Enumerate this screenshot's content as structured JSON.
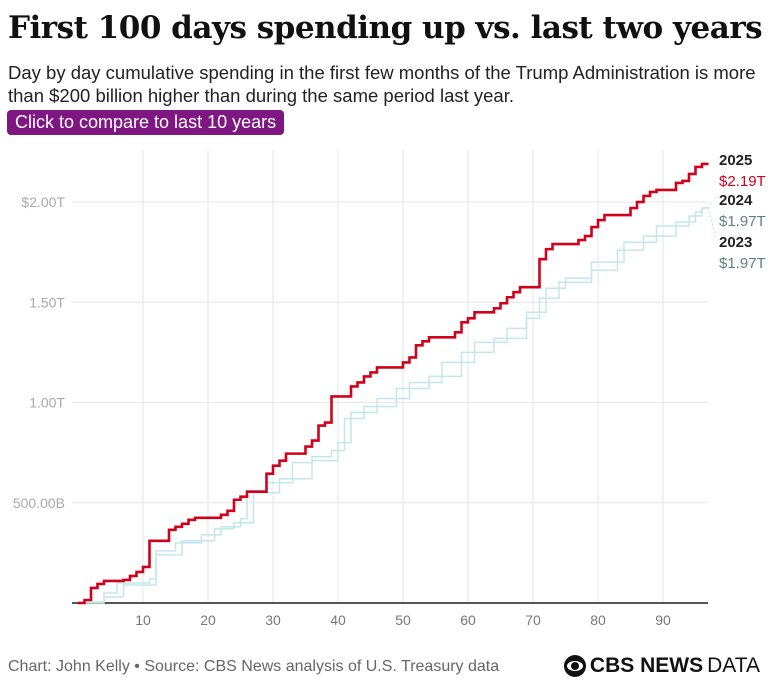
{
  "title": "First 100 days spending up vs. last two years",
  "subtitle": "Day by day cumulative spending in the first few months of the Trump Administration is more than $200 billion higher than during the same period last year.",
  "button_label": "Click to compare to last 10 years",
  "footer": "Chart: John Kelly • Source: CBS News analysis of U.S. Treasury data",
  "logo": {
    "bold": "CBS NEWS",
    "light": "DATA"
  },
  "chart_data": {
    "type": "line",
    "step": true,
    "xlim": [
      0,
      98
    ],
    "ylim": [
      0,
      2.2
    ],
    "x_ticks": [
      10,
      20,
      30,
      40,
      50,
      60,
      70,
      80,
      90
    ],
    "y_ticks": [
      {
        "v": 0.5,
        "label": "500.00B"
      },
      {
        "v": 1.0,
        "label": "1.00T"
      },
      {
        "v": 1.5,
        "label": "1.50T"
      },
      {
        "v": 2.0,
        "label": "$2.00T"
      }
    ],
    "grid": true,
    "series": [
      {
        "name": "2023",
        "end_label": "$1.97T",
        "color": "#c3e6ec",
        "points": [
          [
            1,
            0
          ],
          [
            5,
            0.03
          ],
          [
            8,
            0.09
          ],
          [
            13,
            0.24
          ],
          [
            17,
            0.31
          ],
          [
            22,
            0.37
          ],
          [
            25,
            0.4
          ],
          [
            28,
            0.55
          ],
          [
            32,
            0.62
          ],
          [
            37,
            0.71
          ],
          [
            41,
            0.8
          ],
          [
            43,
            0.95
          ],
          [
            47,
            1.02
          ],
          [
            52,
            1.1
          ],
          [
            57,
            1.2
          ],
          [
            62,
            1.3
          ],
          [
            67,
            1.37
          ],
          [
            70,
            1.45
          ],
          [
            73,
            1.57
          ],
          [
            76,
            1.62
          ],
          [
            80,
            1.66
          ],
          [
            84,
            1.76
          ],
          [
            88,
            1.83
          ],
          [
            93,
            1.9
          ],
          [
            96,
            1.95
          ],
          [
            97,
            1.97
          ]
        ]
      },
      {
        "name": "2024",
        "end_label": "$1.97T",
        "color": "#c3e6ec",
        "points": [
          [
            1,
            0.005
          ],
          [
            5,
            0.05
          ],
          [
            7,
            0.1
          ],
          [
            12,
            0.12
          ],
          [
            13,
            0.26
          ],
          [
            16,
            0.3
          ],
          [
            20,
            0.34
          ],
          [
            23,
            0.38
          ],
          [
            26,
            0.42
          ],
          [
            27,
            0.56
          ],
          [
            30,
            0.6
          ],
          [
            34,
            0.7
          ],
          [
            37,
            0.73
          ],
          [
            40,
            0.76
          ],
          [
            42,
            0.92
          ],
          [
            45,
            0.98
          ],
          [
            50,
            1.07
          ],
          [
            55,
            1.13
          ],
          [
            60,
            1.25
          ],
          [
            65,
            1.32
          ],
          [
            70,
            1.42
          ],
          [
            72,
            1.52
          ],
          [
            75,
            1.6
          ],
          [
            80,
            1.7
          ],
          [
            85,
            1.8
          ],
          [
            90,
            1.88
          ],
          [
            95,
            1.93
          ],
          [
            97,
            1.97
          ]
        ]
      },
      {
        "name": "2025",
        "end_label": "$2.19T",
        "color": "#d0021b",
        "points": [
          [
            1,
            0
          ],
          [
            2,
            0.015
          ],
          [
            3,
            0.075
          ],
          [
            4,
            0.095
          ],
          [
            5,
            0.11
          ],
          [
            8,
            0.115
          ],
          [
            9,
            0.135
          ],
          [
            10,
            0.155
          ],
          [
            11,
            0.18
          ],
          [
            12,
            0.31
          ],
          [
            15,
            0.365
          ],
          [
            16,
            0.38
          ],
          [
            17,
            0.395
          ],
          [
            18,
            0.415
          ],
          [
            19,
            0.425
          ],
          [
            23,
            0.44
          ],
          [
            24,
            0.46
          ],
          [
            25,
            0.515
          ],
          [
            26,
            0.53
          ],
          [
            27,
            0.555
          ],
          [
            30,
            0.645
          ],
          [
            31,
            0.685
          ],
          [
            32,
            0.71
          ],
          [
            33,
            0.745
          ],
          [
            36,
            0.78
          ],
          [
            37,
            0.81
          ],
          [
            38,
            0.885
          ],
          [
            39,
            0.9
          ],
          [
            40,
            1.03
          ],
          [
            43,
            1.08
          ],
          [
            44,
            1.1
          ],
          [
            45,
            1.13
          ],
          [
            46,
            1.15
          ],
          [
            47,
            1.175
          ],
          [
            51,
            1.2
          ],
          [
            52,
            1.225
          ],
          [
            53,
            1.285
          ],
          [
            54,
            1.305
          ],
          [
            55,
            1.325
          ],
          [
            59,
            1.35
          ],
          [
            60,
            1.4
          ],
          [
            61,
            1.42
          ],
          [
            62,
            1.45
          ],
          [
            65,
            1.47
          ],
          [
            66,
            1.495
          ],
          [
            67,
            1.525
          ],
          [
            68,
            1.55
          ],
          [
            69,
            1.575
          ],
          [
            72,
            1.715
          ],
          [
            73,
            1.765
          ],
          [
            74,
            1.79
          ],
          [
            78,
            1.81
          ],
          [
            79,
            1.83
          ],
          [
            80,
            1.875
          ],
          [
            81,
            1.91
          ],
          [
            82,
            1.935
          ],
          [
            86,
            1.97
          ],
          [
            87,
            2.0
          ],
          [
            88,
            2.03
          ],
          [
            89,
            2.05
          ],
          [
            90,
            2.06
          ],
          [
            93,
            2.095
          ],
          [
            94,
            2.105
          ],
          [
            95,
            2.14
          ],
          [
            96,
            2.175
          ],
          [
            97,
            2.19
          ]
        ]
      }
    ]
  }
}
